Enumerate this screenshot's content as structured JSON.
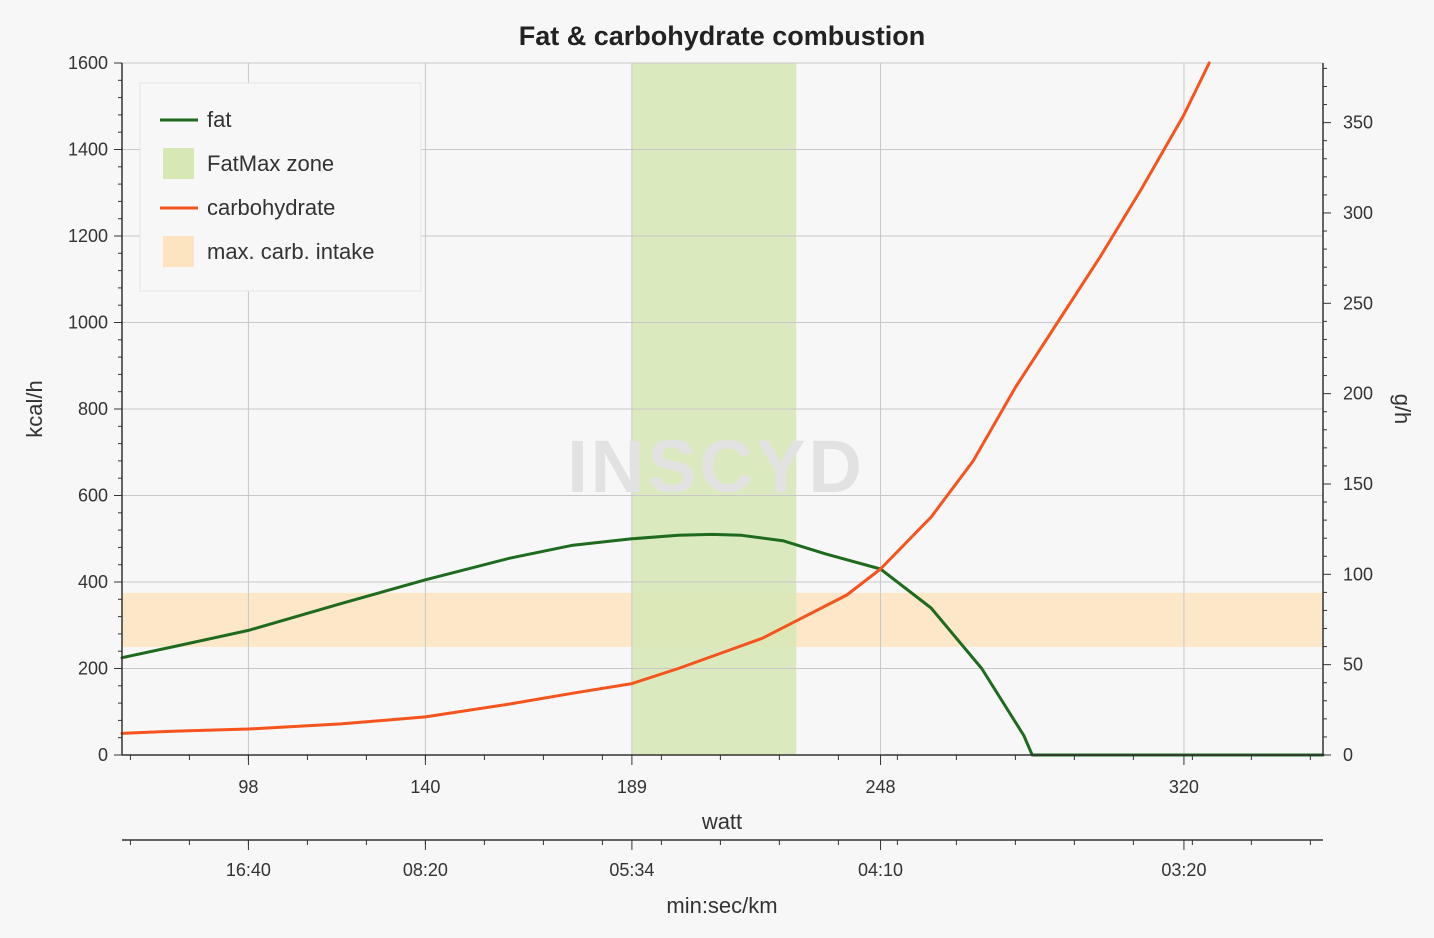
{
  "chart_data": {
    "type": "line",
    "title": "Fat & carbohydrate combustion",
    "watermark": "INSCYD",
    "xlabel": "watt",
    "x2label": "min:sec/km",
    "ylabel": "kcal/h",
    "y2label": "g/h",
    "xlim": [
      68,
      353
    ],
    "ylim": [
      0,
      1600
    ],
    "y2lim": [
      0,
      383
    ],
    "x_ticks": [
      {
        "x": 98,
        "label": "98"
      },
      {
        "x": 140,
        "label": "140"
      },
      {
        "x": 189,
        "label": "189"
      },
      {
        "x": 248,
        "label": "248"
      },
      {
        "x": 320,
        "label": "320"
      }
    ],
    "x2_ticks": [
      {
        "x": 98,
        "label": "16:40"
      },
      {
        "x": 140,
        "label": "08:20"
      },
      {
        "x": 189,
        "label": "05:34"
      },
      {
        "x": 248,
        "label": "04:10"
      },
      {
        "x": 320,
        "label": "03:20"
      }
    ],
    "y_ticks": [
      0,
      200,
      400,
      600,
      800,
      1000,
      1200,
      1400,
      1600
    ],
    "y2_ticks": [
      0,
      50,
      100,
      150,
      200,
      250,
      300,
      350
    ],
    "grid": true,
    "legend_position": "top-left",
    "legend": [
      {
        "label": "fat",
        "kind": "line",
        "color": "#1e6b1e"
      },
      {
        "label": "FatMax zone",
        "kind": "box",
        "color": "#d6e8b4"
      },
      {
        "label": "carbohydrate",
        "kind": "line",
        "color": "#f5541d"
      },
      {
        "label": "max. carb. intake",
        "kind": "box",
        "color": "#fde4c0"
      }
    ],
    "zones": [
      {
        "name": "max. carb. intake",
        "axis": "y",
        "from": 250,
        "to": 375,
        "color": "#fde4c0",
        "opacity": 0.85
      },
      {
        "name": "FatMax zone",
        "axis": "x",
        "from": 189,
        "to": 228,
        "color": "#d6e8b4",
        "opacity": 0.85
      }
    ],
    "series": [
      {
        "name": "fat",
        "color": "#1e6b1e",
        "points": [
          [
            68,
            225
          ],
          [
            80,
            250
          ],
          [
            98,
            288
          ],
          [
            120,
            350
          ],
          [
            140,
            405
          ],
          [
            160,
            455
          ],
          [
            175,
            485
          ],
          [
            189,
            500
          ],
          [
            200,
            508
          ],
          [
            208,
            510
          ],
          [
            215,
            508
          ],
          [
            225,
            495
          ],
          [
            235,
            465
          ],
          [
            248,
            430
          ],
          [
            260,
            340
          ],
          [
            272,
            200
          ],
          [
            282,
            45
          ],
          [
            284,
            0
          ],
          [
            300,
            0
          ],
          [
            320,
            0
          ],
          [
            353,
            0
          ]
        ]
      },
      {
        "name": "carbohydrate",
        "color": "#f5541d",
        "points": [
          [
            68,
            50
          ],
          [
            80,
            55
          ],
          [
            98,
            60
          ],
          [
            120,
            72
          ],
          [
            140,
            88
          ],
          [
            160,
            118
          ],
          [
            175,
            143
          ],
          [
            189,
            165
          ],
          [
            200,
            200
          ],
          [
            210,
            235
          ],
          [
            220,
            270
          ],
          [
            230,
            320
          ],
          [
            240,
            370
          ],
          [
            248,
            430
          ],
          [
            260,
            550
          ],
          [
            270,
            680
          ],
          [
            280,
            850
          ],
          [
            290,
            1000
          ],
          [
            300,
            1150
          ],
          [
            310,
            1310
          ],
          [
            320,
            1480
          ],
          [
            326,
            1600
          ]
        ]
      }
    ]
  }
}
